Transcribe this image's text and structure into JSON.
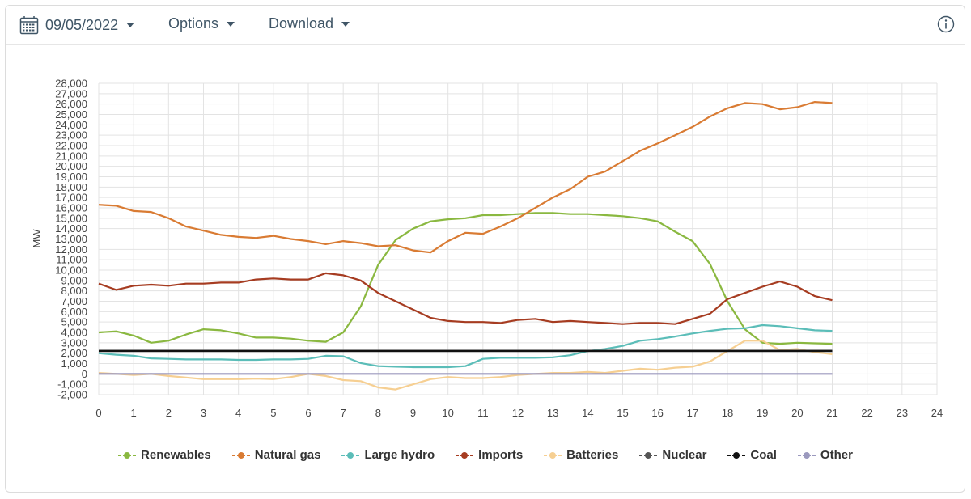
{
  "toolbar": {
    "date": "09/05/2022",
    "options_label": "Options",
    "download_label": "Download",
    "date_icon": "calendar-icon",
    "info_icon": "info-icon"
  },
  "chart_data": {
    "type": "line",
    "title": "",
    "xlabel": "",
    "ylabel": "MW",
    "xlim": [
      0,
      24
    ],
    "ylim": [
      -2000,
      28000
    ],
    "x_ticks": [
      0,
      1,
      2,
      3,
      4,
      5,
      6,
      7,
      8,
      9,
      10,
      11,
      12,
      13,
      14,
      15,
      16,
      17,
      18,
      19,
      20,
      21,
      22,
      23,
      24
    ],
    "y_ticks": [
      -2000,
      -1000,
      0,
      1000,
      2000,
      3000,
      4000,
      5000,
      6000,
      7000,
      8000,
      9000,
      10000,
      11000,
      12000,
      13000,
      14000,
      15000,
      16000,
      17000,
      18000,
      19000,
      20000,
      21000,
      22000,
      23000,
      24000,
      25000,
      26000,
      27000,
      28000
    ],
    "y_tick_labels": [
      "-2,000",
      "-1,000",
      "0",
      "1,000",
      "2,000",
      "3,000",
      "4,000",
      "5,000",
      "6,000",
      "7,000",
      "8,000",
      "9,000",
      "10,000",
      "11,000",
      "12,000",
      "13,000",
      "14,000",
      "15,000",
      "16,000",
      "17,000",
      "18,000",
      "19,000",
      "20,000",
      "21,000",
      "22,000",
      "23,000",
      "24,000",
      "25,000",
      "26,000",
      "27,000",
      "28,000"
    ],
    "grid": true,
    "legend_position": "bottom",
    "series": [
      {
        "name": "Renewables",
        "color": "#8ab840",
        "x": [
          0,
          0.5,
          1,
          1.5,
          2,
          2.5,
          3,
          3.5,
          4,
          4.5,
          5,
          5.5,
          6,
          6.5,
          7,
          7.5,
          8,
          8.5,
          9,
          9.5,
          10,
          10.5,
          11,
          11.5,
          12,
          12.5,
          13,
          13.5,
          14,
          14.5,
          15,
          15.5,
          16,
          16.5,
          17,
          17.5,
          18,
          18.5,
          19,
          19.5,
          20,
          20.5,
          21
        ],
        "y": [
          4000,
          4100,
          3700,
          3000,
          3200,
          3800,
          4300,
          4200,
          3900,
          3500,
          3500,
          3400,
          3200,
          3100,
          4000,
          6500,
          10500,
          12900,
          14000,
          14700,
          14900,
          15000,
          15300,
          15300,
          15400,
          15500,
          15500,
          15400,
          15400,
          15300,
          15200,
          15000,
          14700,
          13700,
          12800,
          10600,
          7000,
          4300,
          3000,
          2900,
          3000,
          2950,
          2900
        ]
      },
      {
        "name": "Natural gas",
        "color": "#d97b33",
        "x": [
          0,
          0.5,
          1,
          1.5,
          2,
          2.5,
          3,
          3.5,
          4,
          4.5,
          5,
          5.5,
          6,
          6.5,
          7,
          7.5,
          8,
          8.5,
          9,
          9.5,
          10,
          10.5,
          11,
          11.5,
          12,
          12.5,
          13,
          13.5,
          14,
          14.5,
          15,
          15.5,
          16,
          16.5,
          17,
          17.5,
          18,
          18.5,
          19,
          19.5,
          20,
          20.5,
          21
        ],
        "y": [
          16300,
          16200,
          15700,
          15600,
          15000,
          14200,
          13800,
          13400,
          13200,
          13100,
          13300,
          13000,
          12800,
          12500,
          12800,
          12600,
          12300,
          12400,
          11900,
          11700,
          12800,
          13600,
          13500,
          14200,
          15000,
          16000,
          17000,
          17800,
          19000,
          19500,
          20500,
          21500,
          22200,
          23000,
          23800,
          24800,
          25600,
          26100,
          26000,
          25500,
          25700,
          26200,
          26100
        ]
      },
      {
        "name": "Large hydro",
        "color": "#5bbdb8",
        "x": [
          0,
          0.5,
          1,
          1.5,
          2,
          2.5,
          3,
          3.5,
          4,
          4.5,
          5,
          5.5,
          6,
          6.5,
          7,
          7.5,
          8,
          8.5,
          9,
          9.5,
          10,
          10.5,
          11,
          11.5,
          12,
          12.5,
          13,
          13.5,
          14,
          14.5,
          15,
          15.5,
          16,
          16.5,
          17,
          17.5,
          18,
          18.5,
          19,
          19.5,
          20,
          20.5,
          21
        ],
        "y": [
          2000,
          1850,
          1750,
          1500,
          1450,
          1400,
          1400,
          1400,
          1350,
          1350,
          1400,
          1400,
          1450,
          1750,
          1700,
          1050,
          750,
          700,
          650,
          650,
          650,
          750,
          1450,
          1550,
          1550,
          1550,
          1600,
          1800,
          2200,
          2400,
          2700,
          3200,
          3350,
          3600,
          3900,
          4150,
          4350,
          4400,
          4700,
          4600,
          4400,
          4200,
          4150
        ]
      },
      {
        "name": "Imports",
        "color": "#a63c21",
        "x": [
          0,
          0.5,
          1,
          1.5,
          2,
          2.5,
          3,
          3.5,
          4,
          4.5,
          5,
          5.5,
          6,
          6.5,
          7,
          7.5,
          8,
          8.5,
          9,
          9.5,
          10,
          10.5,
          11,
          11.5,
          12,
          12.5,
          13,
          13.5,
          14,
          14.5,
          15,
          15.5,
          16,
          16.5,
          17,
          17.5,
          18,
          18.5,
          19,
          19.5,
          20,
          20.5,
          21
        ],
        "y": [
          8700,
          8100,
          8500,
          8600,
          8500,
          8700,
          8700,
          8800,
          8800,
          9100,
          9200,
          9100,
          9100,
          9700,
          9500,
          9000,
          7800,
          7000,
          6200,
          5400,
          5100,
          5000,
          5000,
          4900,
          5200,
          5300,
          5000,
          5100,
          5000,
          4900,
          4800,
          4900,
          4900,
          4800,
          5300,
          5800,
          7200,
          7800,
          8400,
          8900,
          8400,
          7500,
          7100
        ]
      },
      {
        "name": "Batteries",
        "color": "#f6cf92",
        "x": [
          0,
          0.5,
          1,
          1.5,
          2,
          2.5,
          3,
          3.5,
          4,
          4.5,
          5,
          5.5,
          6,
          6.5,
          7,
          7.5,
          8,
          8.5,
          9,
          9.5,
          10,
          10.5,
          11,
          11.5,
          12,
          12.5,
          13,
          13.5,
          14,
          14.5,
          15,
          15.5,
          16,
          16.5,
          17,
          17.5,
          18,
          18.5,
          19,
          19.5,
          20,
          20.5,
          21
        ],
        "y": [
          100,
          0,
          -100,
          0,
          -200,
          -350,
          -500,
          -500,
          -500,
          -450,
          -500,
          -300,
          0,
          -200,
          -600,
          -700,
          -1300,
          -1500,
          -1000,
          -500,
          -300,
          -400,
          -400,
          -300,
          -100,
          0,
          100,
          100,
          200,
          100,
          300,
          500,
          400,
          600,
          700,
          1200,
          2200,
          3200,
          3200,
          2300,
          2400,
          2100,
          1900
        ]
      },
      {
        "name": "Nuclear",
        "color": "#555555",
        "x": [
          0,
          21
        ],
        "y": [
          2250,
          2250
        ]
      },
      {
        "name": "Coal",
        "color": "#111111",
        "x": [
          0,
          21
        ],
        "y": [
          2200,
          2200
        ]
      },
      {
        "name": "Other",
        "color": "#9b99be",
        "x": [
          0,
          21
        ],
        "y": [
          0,
          0
        ]
      }
    ]
  }
}
